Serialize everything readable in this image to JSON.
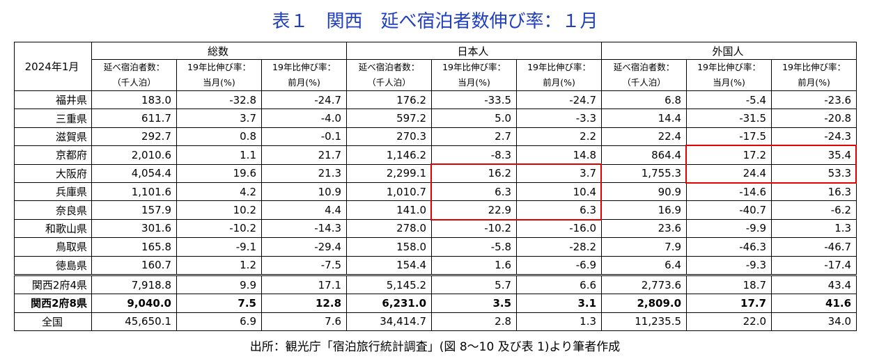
{
  "header": {
    "title": "表１　関西　延べ宿泊者数伸び率：１月"
  },
  "table": {
    "corner": "2024年1月",
    "group_headers": [
      "総数",
      "日本人",
      "外国人"
    ],
    "sub_headers": [
      [
        "延べ宿泊者数：",
        "（千人泊）"
      ],
      [
        "19年比伸び率：",
        "当月(%)"
      ],
      [
        "19年比伸び率：",
        "前月(%)"
      ],
      [
        "延べ宿泊者数：",
        "（千人泊）"
      ],
      [
        "19年比伸び率：",
        "当月(%)"
      ],
      [
        "19年比伸び率：",
        "前月(%)"
      ],
      [
        "延べ宿泊者数：",
        "（千人泊）"
      ],
      [
        "19年比伸び率：",
        "当月(%)"
      ],
      [
        "19年比伸び率：",
        "前月(%)"
      ]
    ],
    "rows": [
      [
        "福井県",
        "183.0",
        "-32.8",
        "-24.7",
        "176.2",
        "-33.5",
        "-24.7",
        "6.8",
        "-5.4",
        "-23.6"
      ],
      [
        "三重県",
        "611.7",
        "3.7",
        "-4.0",
        "597.2",
        "5.0",
        "-3.3",
        "14.4",
        "-31.5",
        "-20.8"
      ],
      [
        "滋賀県",
        "292.7",
        "0.8",
        "-0.1",
        "270.3",
        "2.7",
        "2.2",
        "22.4",
        "-17.5",
        "-24.3"
      ],
      [
        "京都府",
        "2,010.6",
        "1.1",
        "21.7",
        "1,146.2",
        "-8.3",
        "14.8",
        "864.4",
        "17.2",
        "35.4"
      ],
      [
        "大阪府",
        "4,054.4",
        "19.6",
        "21.3",
        "2,299.1",
        "16.2",
        "3.7",
        "1,755.3",
        "24.4",
        "53.3"
      ],
      [
        "兵庫県",
        "1,101.6",
        "4.2",
        "10.9",
        "1,010.7",
        "6.3",
        "10.4",
        "90.9",
        "-14.6",
        "16.3"
      ],
      [
        "奈良県",
        "157.9",
        "10.2",
        "4.4",
        "141.0",
        "22.9",
        "6.3",
        "16.9",
        "-40.7",
        "-6.2"
      ],
      [
        "和歌山県",
        "301.6",
        "-10.2",
        "-14.3",
        "278.0",
        "-10.2",
        "-16.0",
        "23.6",
        "-9.9",
        "1.3"
      ],
      [
        "鳥取県",
        "165.8",
        "-9.1",
        "-29.4",
        "158.0",
        "-5.8",
        "-28.2",
        "7.9",
        "-46.3",
        "-46.7"
      ],
      [
        "徳島県",
        "160.7",
        "1.2",
        "-7.5",
        "154.4",
        "1.6",
        "-6.9",
        "6.4",
        "-9.3",
        "-17.4"
      ],
      [
        "関西2府4県",
        "7,918.8",
        "9.9",
        "17.1",
        "5,145.2",
        "5.7",
        "6.6",
        "2,773.6",
        "18.7",
        "43.4"
      ],
      [
        "関西2府8県",
        "9,040.0",
        "7.5",
        "12.8",
        "6,231.0",
        "3.5",
        "3.1",
        "2,809.0",
        "17.7",
        "41.6"
      ],
      [
        "全国",
        "45,650.1",
        "6.9",
        "7.6",
        "34,414.7",
        "2.8",
        "1.3",
        "11,235.5",
        "22.0",
        "34.0"
      ]
    ]
  },
  "footer": {
    "source": "出所：観光庁「宿泊旅行統計調査」(図 8～10 及び表 1)より筆者作成"
  }
}
